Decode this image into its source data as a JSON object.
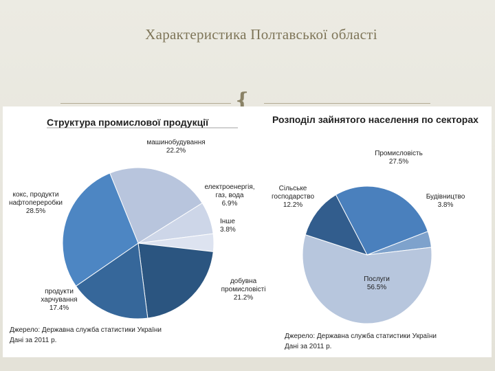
{
  "slide": {
    "title": "Характеристика Полтавської області",
    "ornament_icon": "curly-bracket-ornament"
  },
  "chart_data": [
    {
      "type": "pie",
      "title": "Структура промислової продукції",
      "slices": [
        {
          "name": "машинобудування",
          "value": 22.2,
          "label_lines": [
            "машинобудування",
            "22.2%"
          ],
          "color": "#b8c5dd"
        },
        {
          "name": "електроенергія, газ, вода",
          "value": 6.9,
          "label_lines": [
            "електроенергія,",
            "газ, вода",
            "6.9%"
          ],
          "color": "#cdd6e8"
        },
        {
          "name": "Інше",
          "value": 3.8,
          "label_lines": [
            "Інше",
            "3.8%"
          ],
          "color": "#dde3f0"
        },
        {
          "name": "добувна промисловість",
          "value": 21.2,
          "label_lines": [
            "добувна",
            "промисловісті",
            "21.2%"
          ],
          "color": "#2b5580"
        },
        {
          "name": "продукти харчування",
          "value": 17.4,
          "label_lines": [
            "продукти",
            "харчування",
            "17.4%"
          ],
          "color": "#36679a"
        },
        {
          "name": "кокс, продукти нафтопереробки",
          "value": 28.5,
          "label_lines": [
            "кокс, продукти",
            "нафтопереробки",
            "28.5%"
          ],
          "color": "#4d86c3"
        }
      ],
      "source_lines": [
        "Джерело: Державна служба статистики України",
        "Дані за 2011 р."
      ]
    },
    {
      "type": "pie",
      "title": "Розподіл зайнятого населення по секторах",
      "slices": [
        {
          "name": "Промисловість",
          "value": 27.5,
          "label_lines": [
            "Промисловість",
            "27.5%"
          ],
          "color": "#4a80bd"
        },
        {
          "name": "Будівництво",
          "value": 3.8,
          "label_lines": [
            "Будівництво",
            "3.8%"
          ],
          "color": "#7ea2cc"
        },
        {
          "name": "Послуги",
          "value": 56.5,
          "label_lines": [
            "Послуги",
            "56.5%"
          ],
          "color": "#b7c6dd"
        },
        {
          "name": "Сільське господарство",
          "value": 12.2,
          "label_lines": [
            "Сільське",
            "господарство",
            "12.2%"
          ],
          "color": "#325d8d"
        }
      ],
      "source_lines": [
        "Джерело: Державна служба статистики України",
        "Дані за 2011 р."
      ]
    }
  ]
}
